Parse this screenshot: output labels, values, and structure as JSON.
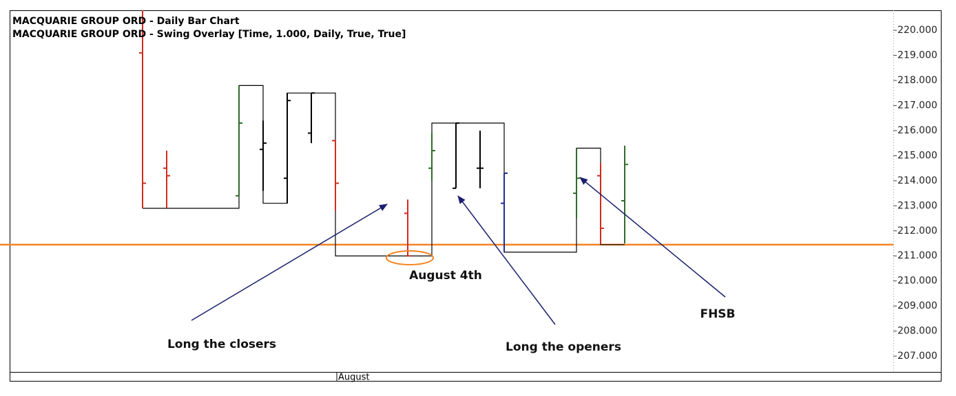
{
  "chart_data": {
    "type": "ohlc",
    "title": "MACQUARIE GROUP ORD - Daily Bar Chart",
    "subtitle": "MACQUARIE GROUP ORD - Swing Overlay [Time, 1.000, Daily, True, True]",
    "categories": [
      null,
      null,
      null,
      null,
      null,
      null,
      null,
      null,
      "August",
      null,
      null,
      null,
      null,
      null,
      null,
      null,
      null,
      null,
      null,
      null,
      null
    ],
    "open": [
      219.1,
      214.5,
      null,
      null,
      213.4,
      215.25,
      214.1,
      215.9,
      215.6,
      null,
      null,
      212.7,
      214.5,
      213.7,
      214.5,
      213.1,
      null,
      null,
      213.5,
      214.2,
      213.2
    ],
    "high": [
      220.8,
      215.2,
      null,
      null,
      217.8,
      216.4,
      217.5,
      217.5,
      215.6,
      null,
      null,
      213.25,
      215.9,
      216.3,
      216.0,
      214.3,
      null,
      null,
      215.3,
      214.7,
      215.4
    ],
    "low": [
      212.9,
      212.9,
      null,
      null,
      213.4,
      213.6,
      213.1,
      215.5,
      212.8,
      null,
      null,
      211.0,
      214.0,
      213.7,
      213.7,
      211.15,
      null,
      null,
      212.5,
      211.5,
      211.5
    ],
    "close": [
      213.9,
      214.2,
      null,
      null,
      216.3,
      215.5,
      217.2,
      217.5,
      213.9,
      null,
      null,
      211.0,
      215.2,
      216.3,
      214.5,
      214.3,
      null,
      null,
      214.1,
      212.1,
      214.65
    ],
    "colors": [
      "#d42a1a",
      "#d42a1a",
      null,
      null,
      "#2f6b2a",
      "#000000",
      "#000000",
      "#000000",
      "#d42a1a",
      null,
      null,
      "#d42a1a",
      "#2f6b2a",
      "#000000",
      "#000000",
      "#1f2a9a",
      null,
      null,
      "#2f6b2a",
      "#d42a1a",
      "#2f6b2a"
    ],
    "swing": {
      "x": [
        0,
        4,
        5,
        6,
        8,
        12,
        15,
        18,
        19,
        20
      ],
      "values": [
        212.9,
        217.8,
        213.1,
        217.5,
        211.0,
        216.3,
        211.15,
        215.3,
        211.45,
        211.45
      ],
      "color": "#000000"
    },
    "hline": {
      "value": 211.45,
      "color": "#f58220"
    },
    "ylim": [
      206.37,
      220.8
    ],
    "yticks": [
      {
        "value": 207,
        "label": "207.000"
      },
      {
        "value": 208,
        "label": "208.000"
      },
      {
        "value": 209,
        "label": "209.000"
      },
      {
        "value": 210,
        "label": "210.000"
      },
      {
        "value": 211,
        "label": "211.000"
      },
      {
        "value": 212,
        "label": "212.000"
      },
      {
        "value": 213,
        "label": "213.000"
      },
      {
        "value": 214,
        "label": "214.000"
      },
      {
        "value": 215,
        "label": "215.000"
      },
      {
        "value": 216,
        "label": "216.000"
      },
      {
        "value": 217,
        "label": "217.000"
      },
      {
        "value": 218,
        "label": "218.000"
      },
      {
        "value": 219,
        "label": "219.000"
      },
      {
        "value": 220,
        "label": "220.000"
      }
    ],
    "annotations": [
      "Long the closers",
      "August 4th",
      "Long the openers",
      "FHSB"
    ]
  }
}
